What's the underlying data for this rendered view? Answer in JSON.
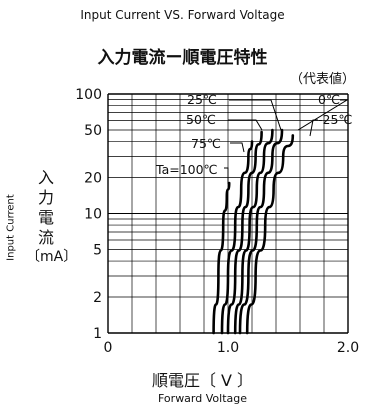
{
  "chart_data": {
    "type": "line",
    "title": "Input Current VS. Forward Voltage",
    "title_jp": "入力電流ー順電圧特性",
    "subtitle": "（代表値）",
    "ylabel": "Input Current",
    "ylabel_jp": "入力電流",
    "yunit": "〔mA〕",
    "xlabel": "Forward Voltage",
    "xlabel_jp": "順電圧〔 V 〕",
    "xlim": [
      0,
      2.0
    ],
    "ylim": [
      1,
      100
    ],
    "yscale": "log",
    "grid": true,
    "x_ticks": [
      "0",
      "1.0",
      "2.0"
    ],
    "y_ticks": [
      "1",
      "2",
      "5",
      "10",
      "20",
      "50",
      "100"
    ],
    "series": [
      {
        "name": "Ta=100℃",
        "points": [
          [
            0.88,
            1
          ],
          [
            0.92,
            3
          ],
          [
            0.96,
            8
          ],
          [
            0.99,
            14
          ],
          [
            1.01,
            18
          ]
        ]
      },
      {
        "name": "75℃",
        "points": [
          [
            0.95,
            1
          ],
          [
            1.0,
            3
          ],
          [
            1.06,
            8
          ],
          [
            1.11,
            16
          ],
          [
            1.17,
            30
          ],
          [
            1.2,
            40
          ]
        ]
      },
      {
        "name": "50℃",
        "points": [
          [
            1.0,
            1
          ],
          [
            1.06,
            3
          ],
          [
            1.12,
            8
          ],
          [
            1.17,
            16
          ],
          [
            1.23,
            30
          ],
          [
            1.28,
            48
          ]
        ]
      },
      {
        "name": "25℃",
        "points": [
          [
            1.06,
            1
          ],
          [
            1.12,
            3
          ],
          [
            1.18,
            8
          ],
          [
            1.24,
            16
          ],
          [
            1.3,
            30
          ],
          [
            1.37,
            50
          ]
        ]
      },
      {
        "name": "0℃",
        "points": [
          [
            1.1,
            1
          ],
          [
            1.17,
            3
          ],
          [
            1.24,
            8
          ],
          [
            1.3,
            16
          ],
          [
            1.37,
            30
          ],
          [
            1.45,
            50
          ]
        ]
      },
      {
        "name": "-25℃",
        "points": [
          [
            1.16,
            1
          ],
          [
            1.23,
            3
          ],
          [
            1.31,
            8
          ],
          [
            1.38,
            16
          ],
          [
            1.46,
            30
          ],
          [
            1.54,
            45
          ]
        ]
      }
    ],
    "curve_label_texts": [
      "25℃",
      "0℃",
      "50℃",
      "-25℃",
      "75℃",
      "Ta=100℃"
    ]
  }
}
